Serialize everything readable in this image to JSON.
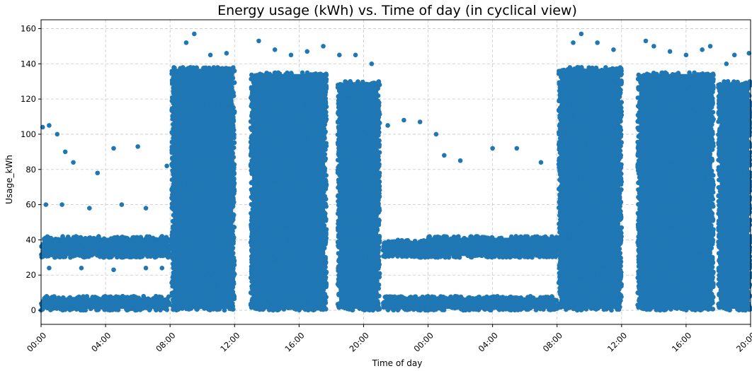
{
  "chart_data": {
    "type": "scatter",
    "title": "Energy usage (kWh) vs. Time of day (in cyclical view)",
    "xlabel": "Time of day",
    "ylabel": "Usage_kWh",
    "x_ticks": [
      "00:00",
      "04:00",
      "08:00",
      "12:00",
      "16:00",
      "20:00",
      "00:00",
      "04:00",
      "08:00",
      "12:00",
      "16:00",
      "20:00"
    ],
    "x_range_hours": [
      0,
      44
    ],
    "ylim": [
      -8,
      165
    ],
    "y_ticks": [
      0,
      20,
      40,
      60,
      80,
      100,
      120,
      140,
      160
    ],
    "grid": true,
    "marker_color": "#1f77b4",
    "series": [
      {
        "points": [
          [
            0.0,
            0.0
          ],
          [
            0.1,
            104
          ],
          [
            0.5,
            105
          ],
          [
            1.0,
            100
          ],
          [
            1.5,
            90
          ],
          [
            2.0,
            84
          ],
          [
            3.5,
            78
          ],
          [
            4.5,
            92
          ],
          [
            6.0,
            93
          ],
          [
            7.8,
            82
          ],
          [
            0.3,
            60
          ],
          [
            1.3,
            60
          ],
          [
            3.0,
            58
          ],
          [
            5.0,
            60
          ],
          [
            6.5,
            58
          ],
          [
            0.2,
            40
          ],
          [
            2.0,
            38
          ],
          [
            4.0,
            38
          ],
          [
            6.0,
            40
          ],
          [
            7.5,
            42
          ],
          [
            0.5,
            24
          ],
          [
            2.5,
            24
          ],
          [
            4.5,
            23
          ],
          [
            6.5,
            24
          ],
          [
            7.5,
            24
          ],
          [
            1.0,
            6
          ],
          [
            3.0,
            5
          ],
          [
            5.0,
            5
          ],
          [
            7.0,
            5
          ],
          [
            9.0,
            152
          ],
          [
            9.5,
            157
          ],
          [
            10.5,
            145
          ],
          [
            11.5,
            146
          ],
          [
            13.5,
            153
          ],
          [
            14.5,
            148
          ],
          [
            15.5,
            145
          ],
          [
            16.5,
            147
          ],
          [
            17.5,
            150
          ],
          [
            18.5,
            145
          ],
          [
            19.5,
            145
          ],
          [
            20.5,
            140
          ],
          [
            21.5,
            105
          ],
          [
            22.5,
            108
          ],
          [
            23.5,
            107
          ],
          [
            24.5,
            100
          ],
          [
            24.0,
            0.0
          ],
          [
            25.0,
            88
          ],
          [
            26.0,
            85
          ],
          [
            28.0,
            92
          ],
          [
            29.5,
            92
          ],
          [
            31.0,
            84
          ],
          [
            33.0,
            152
          ],
          [
            33.5,
            157
          ],
          [
            34.5,
            152
          ],
          [
            35.5,
            148
          ],
          [
            37.5,
            153
          ],
          [
            38.0,
            150
          ],
          [
            39.0,
            147
          ],
          [
            40.0,
            145
          ],
          [
            41.0,
            148
          ],
          [
            41.5,
            150
          ],
          [
            42.5,
            140
          ],
          [
            43.0,
            145
          ],
          [
            43.9,
            146
          ]
        ]
      }
    ],
    "dense_bands": [
      {
        "x": [
          0.0,
          8.0
        ],
        "y": [
          0.0,
          8.0
        ]
      },
      {
        "x": [
          0.0,
          8.0
        ],
        "y": [
          30.0,
          42.0
        ]
      },
      {
        "x": [
          8.1,
          12.0
        ],
        "y": [
          0.0,
          138.0
        ]
      },
      {
        "x": [
          13.0,
          17.7
        ],
        "y": [
          0.0,
          135.0
        ]
      },
      {
        "x": [
          18.4,
          21.0
        ],
        "y": [
          0.0,
          130.0
        ]
      },
      {
        "x": [
          21.2,
          24.0
        ],
        "y": [
          0.0,
          8.0
        ]
      },
      {
        "x": [
          21.2,
          24.0
        ],
        "y": [
          30.0,
          40.0
        ]
      },
      {
        "x": [
          24.0,
          32.0
        ],
        "y": [
          0.0,
          8.0
        ]
      },
      {
        "x": [
          24.0,
          32.0
        ],
        "y": [
          30.0,
          42.0
        ]
      },
      {
        "x": [
          32.1,
          36.0
        ],
        "y": [
          0.0,
          138.0
        ]
      },
      {
        "x": [
          37.0,
          41.7
        ],
        "y": [
          0.0,
          135.0
        ]
      },
      {
        "x": [
          42.0,
          44.0
        ],
        "y": [
          0.0,
          130.0
        ]
      }
    ]
  }
}
